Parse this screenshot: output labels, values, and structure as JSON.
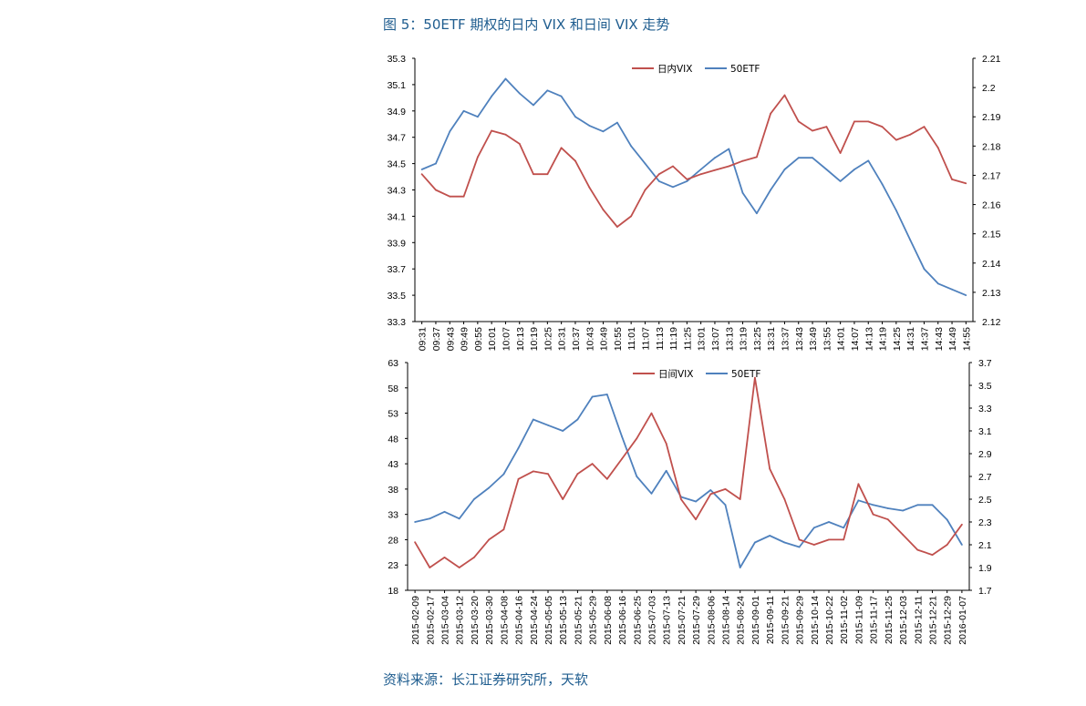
{
  "title": "图 5：50ETF 期权的日内 VIX 和日间 VIX 走势",
  "source": "资料来源：长江证券研究所，天软",
  "colors": {
    "vix": "#c0504d",
    "etf": "#4f81bd"
  },
  "chart_data": [
    {
      "type": "line",
      "legend": [
        "日内VIX",
        "50ETF"
      ],
      "left_axis": {
        "ylim": [
          33.3,
          35.3
        ],
        "ticks": [
          "35.3",
          "35.1",
          "34.9",
          "34.7",
          "34.5",
          "34.3",
          "34.1",
          "33.9",
          "33.7",
          "33.5",
          "33.3"
        ]
      },
      "right_axis": {
        "ylim": [
          2.12,
          2.21
        ],
        "ticks": [
          "2.21",
          "2.2",
          "2.19",
          "2.18",
          "2.17",
          "2.16",
          "2.15",
          "2.14",
          "2.13",
          "2.12"
        ]
      },
      "categories": [
        "09:31",
        "09:37",
        "09:43",
        "09:49",
        "09:55",
        "10:01",
        "10:07",
        "10:13",
        "10:19",
        "10:25",
        "10:31",
        "10:37",
        "10:43",
        "10:49",
        "10:55",
        "11:01",
        "11:07",
        "11:13",
        "11:19",
        "11:25",
        "13:01",
        "13:07",
        "13:13",
        "13:19",
        "13:25",
        "13:31",
        "13:37",
        "13:43",
        "13:49",
        "13:55",
        "14:01",
        "14:07",
        "14:13",
        "14:19",
        "14:25",
        "14:31",
        "14:37",
        "14:43",
        "14:49",
        "14:55"
      ],
      "series": [
        {
          "name": "日内VIX",
          "axis": "left",
          "values": [
            34.42,
            34.3,
            34.25,
            34.25,
            34.55,
            34.75,
            34.72,
            34.65,
            34.42,
            34.42,
            34.62,
            34.52,
            34.32,
            34.15,
            34.02,
            34.1,
            34.3,
            34.42,
            34.48,
            34.38,
            34.42,
            34.45,
            34.48,
            34.52,
            34.55,
            34.88,
            35.02,
            34.82,
            34.75,
            34.78,
            34.58,
            34.82,
            34.82,
            34.78,
            34.68,
            34.72,
            34.78,
            34.62,
            34.38,
            34.35
          ]
        },
        {
          "name": "50ETF",
          "axis": "right",
          "values": [
            2.172,
            2.174,
            2.185,
            2.192,
            2.19,
            2.197,
            2.203,
            2.198,
            2.194,
            2.199,
            2.197,
            2.19,
            2.187,
            2.185,
            2.188,
            2.18,
            2.174,
            2.168,
            2.166,
            2.168,
            2.172,
            2.176,
            2.179,
            2.164,
            2.157,
            2.165,
            2.172,
            2.176,
            2.176,
            2.172,
            2.168,
            2.172,
            2.175,
            2.167,
            2.158,
            2.148,
            2.138,
            2.133,
            2.131,
            2.129
          ]
        }
      ]
    },
    {
      "type": "line",
      "legend": [
        "日间VIX",
        "50ETF"
      ],
      "left_axis": {
        "ylim": [
          18,
          63
        ],
        "ticks": [
          "63",
          "58",
          "53",
          "48",
          "43",
          "38",
          "33",
          "28",
          "23",
          "18"
        ]
      },
      "right_axis": {
        "ylim": [
          1.7,
          3.7
        ],
        "ticks": [
          "3.7",
          "3.5",
          "3.3",
          "3.1",
          "2.9",
          "2.7",
          "2.5",
          "2.3",
          "2.1",
          "1.9",
          "1.7"
        ]
      },
      "categories": [
        "2015-02-09",
        "2015-02-17",
        "2015-03-04",
        "2015-03-12",
        "2015-03-20",
        "2015-03-30",
        "2015-04-08",
        "2015-04-16",
        "2015-04-24",
        "2015-05-05",
        "2015-05-13",
        "2015-05-21",
        "2015-05-29",
        "2015-06-08",
        "2015-06-16",
        "2015-06-25",
        "2015-07-03",
        "2015-07-13",
        "2015-07-21",
        "2015-07-29",
        "2015-08-06",
        "2015-08-14",
        "2015-08-24",
        "2015-09-01",
        "2015-09-11",
        "2015-09-21",
        "2015-09-29",
        "2015-10-14",
        "2015-10-22",
        "2015-11-02",
        "2015-11-09",
        "2015-11-17",
        "2015-11-25",
        "2015-12-03",
        "2015-12-11",
        "2015-12-21",
        "2015-12-29",
        "2016-01-07"
      ],
      "series": [
        {
          "name": "日间VIX",
          "axis": "left",
          "values": [
            27.5,
            22.5,
            24.5,
            22.5,
            24.5,
            28,
            30,
            40,
            41.5,
            41,
            36,
            41,
            43,
            40,
            44,
            48,
            53,
            47,
            36,
            32,
            37,
            38,
            36,
            60,
            42,
            36,
            28,
            27,
            28,
            28,
            39,
            33,
            32,
            29,
            26,
            25,
            27,
            31
          ]
        },
        {
          "name": "50ETF",
          "axis": "right",
          "values": [
            2.3,
            2.33,
            2.39,
            2.33,
            2.5,
            2.6,
            2.72,
            2.95,
            3.2,
            3.15,
            3.1,
            3.2,
            3.4,
            3.42,
            3.05,
            2.7,
            2.55,
            2.75,
            2.52,
            2.48,
            2.58,
            2.45,
            1.9,
            2.12,
            2.18,
            2.12,
            2.08,
            2.25,
            2.3,
            2.25,
            2.49,
            2.45,
            2.42,
            2.4,
            2.45,
            2.45,
            2.32,
            2.1
          ]
        }
      ]
    }
  ]
}
